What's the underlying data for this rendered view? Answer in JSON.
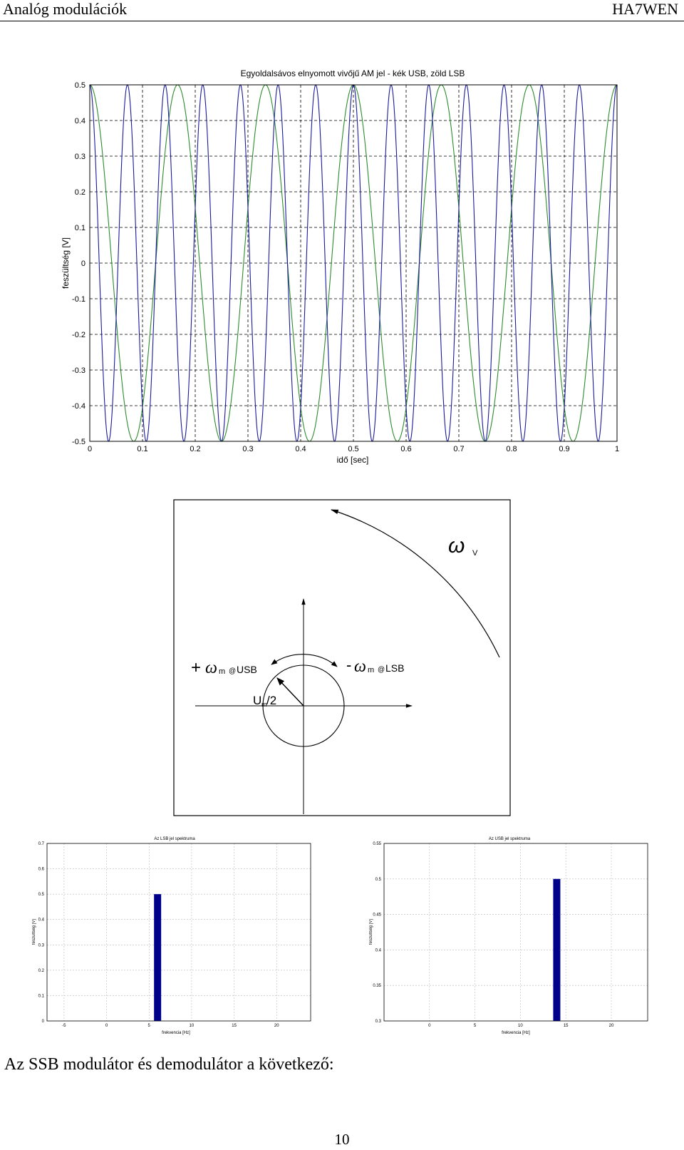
{
  "header": {
    "left": "Analóg modulációk",
    "right": "HA7WEN"
  },
  "caption": "Az SSB modulátor és demodulátor a következő:",
  "page_number": "10",
  "phasor": {
    "omega_v": "ω",
    "omega_v_sub": "V",
    "usb_prefix": "+",
    "usb_omega": "ω",
    "usb_sub": "m",
    "usb_at": "@",
    "usb_text": "USB",
    "lsb_prefix": "-",
    "lsb_omega": "ω",
    "lsb_sub": "m",
    "lsb_at": "@",
    "lsb_text": "LSB",
    "amp_u": "U",
    "amp_sub": "m",
    "amp_rest": "/2"
  },
  "colors": {
    "usb": "#1a1aa0",
    "lsb": "#2e8b2e",
    "spectrum_bar": "#00008b"
  },
  "chart_data": [
    {
      "type": "line",
      "title": "Egyoldalsávos elnyomott vivőjű AM jel - kék USB, zöld LSB",
      "xlabel": "idő [sec]",
      "ylabel": "feszültség [V]",
      "xlim": [
        0,
        1
      ],
      "ylim": [
        -0.5,
        0.5
      ],
      "xticks": [
        "0",
        "0.1",
        "0.2",
        "0.3",
        "0.4",
        "0.5",
        "0.6",
        "0.7",
        "0.8",
        "0.9",
        "1"
      ],
      "yticks": [
        "0.5",
        "0.4",
        "0.3",
        "0.2",
        "0.1",
        "0",
        "-0.1",
        "-0.2",
        "-0.3",
        "-0.4",
        "-0.5"
      ],
      "grid": true,
      "series": [
        {
          "name": "USB",
          "color": "#1a1aa0",
          "amplitude": 0.5,
          "frequency_hz": 14
        },
        {
          "name": "LSB",
          "color": "#2e8b2e",
          "amplitude": 0.5,
          "frequency_hz": 6
        }
      ]
    },
    {
      "type": "bar",
      "title": "Az LSB jel spektruma",
      "xlabel": "frekvencia [Hz]",
      "ylabel": "feszültség [V]",
      "xlim": [
        -7,
        24
      ],
      "ylim": [
        0,
        0.7
      ],
      "xticks": [
        "-5",
        "0",
        "5",
        "10",
        "15",
        "20"
      ],
      "yticks": [
        "0.7",
        "0.6",
        "0.5",
        "0.4",
        "0.3",
        "0.2",
        "0.1",
        "0"
      ],
      "grid": true,
      "x": [
        6
      ],
      "values": [
        0.5
      ]
    },
    {
      "type": "bar",
      "title": "Az USB jel spektruma",
      "xlabel": "frekvencia [Hz]",
      "ylabel": "feszültség [V]",
      "xlim": [
        -5,
        24
      ],
      "ylim": [
        0.3,
        0.55
      ],
      "xticks": [
        "0",
        "5",
        "10",
        "15",
        "20"
      ],
      "yticks": [
        "0.55",
        "0.5",
        "0.45",
        "0.4",
        "0.35",
        "0.3"
      ],
      "grid": true,
      "x": [
        14
      ],
      "values": [
        0.5
      ]
    }
  ]
}
